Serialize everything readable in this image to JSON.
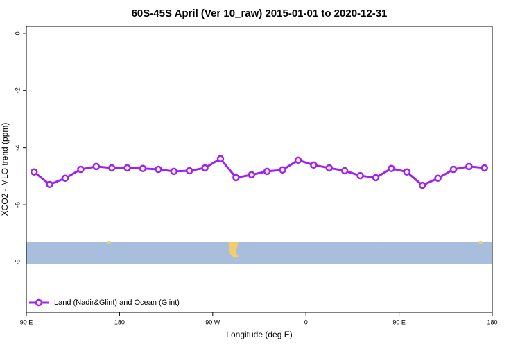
{
  "chart_data": {
    "type": "line",
    "title": "60S-45S April (Ver 10_raw)   2015-01-01 to 2020-12-31",
    "x_label": "Longitude (deg E)",
    "y_label": "XCO2 - MLO trend (ppm)",
    "x": [
      97.5,
      112.5,
      127.5,
      142.5,
      157.5,
      172.5,
      187.5,
      202.5,
      217.5,
      232.5,
      247.5,
      262.5,
      277.5,
      292.5,
      307.5,
      322.5,
      337.5,
      352.5,
      367.5,
      382.5,
      397.5,
      412.5,
      427.5,
      442.5,
      457.5,
      472.5,
      487.5,
      502.5,
      517.5,
      532.5
    ],
    "series": [
      {
        "name": "Land (Nadir&Glint) and Ocean (Glint)",
        "color": "#a020f0",
        "values": [
          -4.85,
          -5.29,
          -5.07,
          -4.76,
          -4.66,
          -4.71,
          -4.71,
          -4.73,
          -4.76,
          -4.83,
          -4.81,
          -4.71,
          -4.39,
          -5.05,
          -4.95,
          -4.83,
          -4.78,
          -4.44,
          -4.61,
          -4.71,
          -4.81,
          -4.98,
          -5.05,
          -4.73,
          -4.85,
          -5.32,
          -5.07,
          -4.76,
          -4.66,
          -4.71
        ]
      }
    ],
    "xlim": [
      90,
      540
    ],
    "ylim": [
      -9.76,
      0.24
    ],
    "xticks": [
      {
        "value": 90,
        "label": "90 E"
      },
      {
        "value": 180,
        "label": "180"
      },
      {
        "value": 270,
        "label": "90 W"
      },
      {
        "value": 360,
        "label": "0"
      },
      {
        "value": 450,
        "label": "90 E"
      },
      {
        "value": 540,
        "label": "180"
      }
    ],
    "yticks": [
      0,
      -2,
      -4,
      -6,
      -8
    ],
    "legend": "bottom-left"
  }
}
